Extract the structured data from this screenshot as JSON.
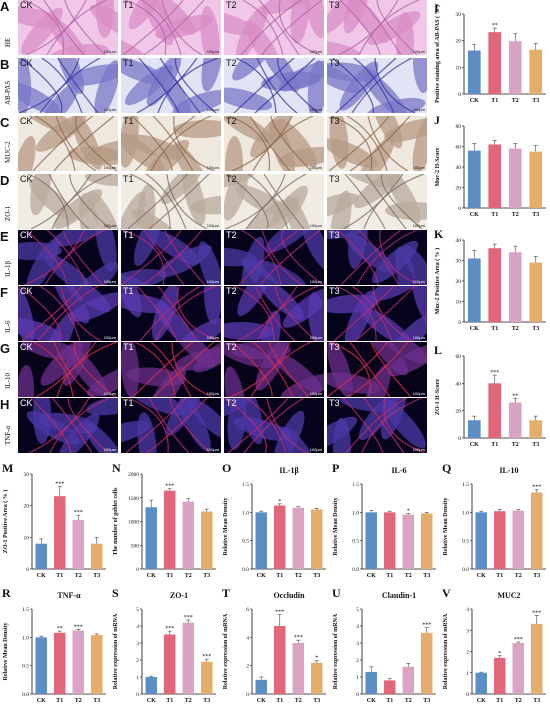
{
  "panels": {
    "micro_groups": [
      "CK",
      "T1",
      "T2",
      "T3"
    ],
    "micro_rows": [
      {
        "letter": "A",
        "stain": "HE",
        "bg": "#f0c7e6",
        "tissue": "#d98dc6",
        "line": "#b567a8",
        "label_color": "#111"
      },
      {
        "letter": "B",
        "stain": "AB-PAS",
        "bg": "#e2e3f4",
        "tissue": "#7a77c5",
        "line": "#3a37a5",
        "label_color": "#111"
      },
      {
        "letter": "C",
        "stain": "MUC-2",
        "bg": "#efe8df",
        "tissue": "#b59a84",
        "line": "#8c6a4e",
        "label_color": "#111"
      },
      {
        "letter": "D",
        "stain": "ZO-1",
        "bg": "#f0ece4",
        "tissue": "#b8aa9c",
        "line": "#7e6f66",
        "label_color": "#111"
      },
      {
        "letter": "E",
        "stain": "IL-1β",
        "bg": "#05041c",
        "tissue": "#4e3aa6",
        "line": "#b5287a",
        "label_color": "#fff"
      },
      {
        "letter": "F",
        "stain": "IL-6",
        "bg": "#05041c",
        "tissue": "#5a3ab0",
        "line": "#c02a70",
        "label_color": "#fff"
      },
      {
        "letter": "G",
        "stain": "IL-10",
        "bg": "#07041a",
        "tissue": "#6c2f8c",
        "line": "#d62c4a",
        "label_color": "#fff"
      },
      {
        "letter": "H",
        "stain": "TNF-α",
        "bg": "#05041c",
        "tissue": "#4c38a8",
        "line": "#c22a6a",
        "label_color": "#fff"
      }
    ],
    "scale_bar": "100μm"
  },
  "colors": {
    "CK": "#5b8ec4",
    "T1": "#e0677a",
    "T2": "#d9a3c4",
    "T3": "#e4ad6b"
  },
  "chart_data": [
    {
      "letter": "I",
      "type": "bar",
      "categories": [
        "CK",
        "T1",
        "T2",
        "T3"
      ],
      "values": [
        16.3,
        23.2,
        19.8,
        16.6
      ],
      "errors": [
        2.2,
        1.5,
        2.8,
        2.3
      ],
      "sig": [
        "",
        "**",
        "",
        ""
      ],
      "ylabel": "Positive staining area of AB-PAS ( % )",
      "ylim": [
        0,
        30
      ],
      "yticks": [
        0,
        10,
        20,
        30
      ],
      "title": ""
    },
    {
      "letter": "J",
      "type": "bar",
      "categories": [
        "CK",
        "T1",
        "T2",
        "T3"
      ],
      "values": [
        56,
        62,
        58,
        55
      ],
      "errors": [
        7,
        4,
        5,
        6
      ],
      "sig": [
        "",
        "",
        "",
        ""
      ],
      "ylabel": "Muc-2 H-Score",
      "ylim": [
        0,
        80
      ],
      "yticks": [
        0,
        20,
        40,
        60,
        80
      ],
      "title": ""
    },
    {
      "letter": "K",
      "type": "bar",
      "categories": [
        "CK",
        "T1",
        "T2",
        "T3"
      ],
      "values": [
        31,
        36,
        34,
        29
      ],
      "errors": [
        4,
        2,
        3,
        3
      ],
      "sig": [
        "",
        "",
        "",
        ""
      ],
      "ylabel": "Muc-2 Positive Area ( % )",
      "ylim": [
        0,
        40
      ],
      "yticks": [
        0,
        10,
        20,
        30,
        40
      ],
      "title": ""
    },
    {
      "letter": "L",
      "type": "bar",
      "categories": [
        "CK",
        "T1",
        "T2",
        "T3"
      ],
      "values": [
        13,
        40,
        26,
        13
      ],
      "errors": [
        3,
        6,
        3,
        3
      ],
      "sig": [
        "",
        "***",
        "**",
        ""
      ],
      "ylabel": "ZO-1 H-Score",
      "ylim": [
        0,
        60
      ],
      "yticks": [
        0,
        20,
        40,
        60
      ],
      "title": ""
    },
    {
      "letter": "M",
      "type": "bar",
      "categories": [
        "CK",
        "T1",
        "T2",
        "T3"
      ],
      "values": [
        8,
        23,
        15.5,
        8
      ],
      "errors": [
        1.5,
        3,
        1.5,
        2
      ],
      "sig": [
        "",
        "***",
        "***",
        ""
      ],
      "ylabel": "ZO-1 Positive Area ( % )",
      "ylim": [
        0,
        30
      ],
      "yticks": [
        0,
        10,
        20,
        30
      ],
      "title": ""
    },
    {
      "letter": "N",
      "type": "bar",
      "categories": [
        "CK",
        "T1",
        "T2",
        "T3"
      ],
      "values": [
        1300,
        1650,
        1420,
        1210
      ],
      "errors": [
        150,
        40,
        60,
        50
      ],
      "sig": [
        "",
        "***",
        "",
        ""
      ],
      "ylabel": "The number of goblet cells",
      "ylim": [
        0,
        2000
      ],
      "yticks": [
        0,
        500,
        1000,
        1500,
        2000
      ],
      "title": ""
    },
    {
      "letter": "O",
      "type": "bar",
      "categories": [
        "CK",
        "T1",
        "T2",
        "T3"
      ],
      "values": [
        1.0,
        1.12,
        1.08,
        1.05
      ],
      "errors": [
        0.02,
        0.03,
        0.02,
        0.02
      ],
      "sig": [
        "",
        "*",
        "",
        ""
      ],
      "ylabel": "Relative Mean Density",
      "ylim": [
        0,
        1.5
      ],
      "yticks": [
        0.0,
        0.5,
        1.0,
        1.5
      ],
      "title": "IL-1β"
    },
    {
      "letter": "P",
      "type": "bar",
      "categories": [
        "CK",
        "T1",
        "T2",
        "T3"
      ],
      "values": [
        1.0,
        1.0,
        0.96,
        0.98
      ],
      "errors": [
        0.03,
        0.02,
        0.02,
        0.02
      ],
      "sig": [
        "",
        "",
        "*",
        ""
      ],
      "ylabel": "Relative Mean Density",
      "ylim": [
        0,
        1.5
      ],
      "yticks": [
        0.0,
        0.5,
        1.0,
        1.5
      ],
      "title": "IL-6"
    },
    {
      "letter": "Q",
      "type": "bar",
      "categories": [
        "CK",
        "T1",
        "T2",
        "T3"
      ],
      "values": [
        1.0,
        1.02,
        1.03,
        1.35
      ],
      "errors": [
        0.02,
        0.03,
        0.02,
        0.05
      ],
      "sig": [
        "",
        "",
        "",
        "***"
      ],
      "ylabel": "Relative Mean Density",
      "ylim": [
        0,
        1.5
      ],
      "yticks": [
        0.0,
        0.5,
        1.0,
        1.5
      ],
      "title": "IL-10"
    },
    {
      "letter": "R",
      "type": "bar",
      "categories": [
        "CK",
        "T1",
        "T2",
        "T3"
      ],
      "values": [
        1.0,
        1.08,
        1.12,
        1.04
      ],
      "errors": [
        0.02,
        0.03,
        0.02,
        0.02
      ],
      "sig": [
        "",
        "**",
        "***",
        ""
      ],
      "ylabel": "Relative Mean Density",
      "ylim": [
        0,
        1.5
      ],
      "yticks": [
        0.0,
        0.5,
        1.0,
        1.5
      ],
      "title": "TNF-α"
    },
    {
      "letter": "S",
      "type": "bar",
      "categories": [
        "CK",
        "T1",
        "T2",
        "T3"
      ],
      "values": [
        1.0,
        3.5,
        4.2,
        1.9
      ],
      "errors": [
        0.05,
        0.2,
        0.15,
        0.15
      ],
      "sig": [
        "",
        "***",
        "***",
        "***"
      ],
      "ylabel": "Relative expression of mRNA",
      "ylim": [
        0,
        5
      ],
      "yticks": [
        0,
        1,
        2,
        3,
        4,
        5
      ],
      "title": "ZO-1"
    },
    {
      "letter": "T",
      "type": "bar",
      "categories": [
        "CK",
        "T1",
        "T2",
        "T3"
      ],
      "values": [
        1.0,
        4.8,
        3.6,
        2.2
      ],
      "errors": [
        0.2,
        0.8,
        0.2,
        0.15
      ],
      "sig": [
        "",
        "***",
        "***",
        "*"
      ],
      "ylabel": "Relative expression of mRNA",
      "ylim": [
        0,
        6
      ],
      "yticks": [
        0,
        2,
        4,
        6
      ],
      "title": "Occludin"
    },
    {
      "letter": "U",
      "type": "bar",
      "categories": [
        "CK",
        "T1",
        "T2",
        "T3"
      ],
      "values": [
        1.3,
        0.8,
        1.6,
        3.6
      ],
      "errors": [
        0.3,
        0.1,
        0.2,
        0.3
      ],
      "sig": [
        "",
        "",
        "",
        "***"
      ],
      "ylabel": "Relative expression of mRNA",
      "ylim": [
        0,
        5
      ],
      "yticks": [
        0,
        1,
        2,
        3,
        4,
        5
      ],
      "title": "Claudin-1"
    },
    {
      "letter": "V",
      "type": "bar",
      "categories": [
        "CK",
        "T1",
        "T2",
        "T3"
      ],
      "values": [
        1.0,
        1.7,
        2.4,
        3.3
      ],
      "errors": [
        0.03,
        0.1,
        0.05,
        0.4
      ],
      "sig": [
        "",
        "*",
        "***",
        "***"
      ],
      "ylabel": "Relative expression of mRNA",
      "ylim": [
        0,
        4
      ],
      "yticks": [
        0,
        1,
        2,
        3,
        4
      ],
      "title": "MUC2"
    }
  ]
}
